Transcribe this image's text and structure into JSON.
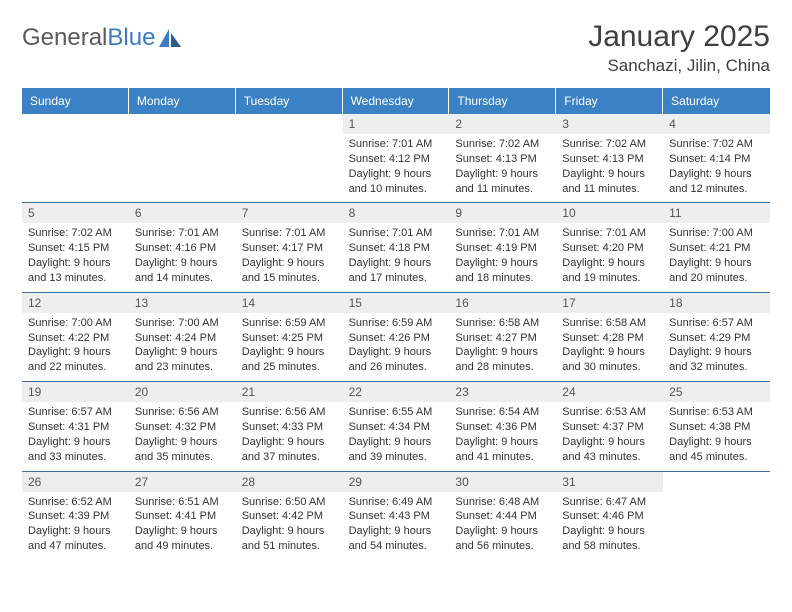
{
  "logo": {
    "part1": "General",
    "part2": "Blue"
  },
  "title": "January 2025",
  "location": "Sanchazi, Jilin, China",
  "colors": {
    "header_bg": "#3b82c4",
    "header_text": "#ffffff",
    "daynum_bg": "#eceef0",
    "border": "#3b6fa0",
    "logo_gray": "#5a5a5a",
    "logo_blue": "#3b7bbf"
  },
  "dayNames": [
    "Sunday",
    "Monday",
    "Tuesday",
    "Wednesday",
    "Thursday",
    "Friday",
    "Saturday"
  ],
  "weeks": [
    [
      {
        "n": "",
        "sr": "",
        "ss": "",
        "dl": ""
      },
      {
        "n": "",
        "sr": "",
        "ss": "",
        "dl": ""
      },
      {
        "n": "",
        "sr": "",
        "ss": "",
        "dl": ""
      },
      {
        "n": "1",
        "sr": "Sunrise: 7:01 AM",
        "ss": "Sunset: 4:12 PM",
        "dl": "Daylight: 9 hours and 10 minutes."
      },
      {
        "n": "2",
        "sr": "Sunrise: 7:02 AM",
        "ss": "Sunset: 4:13 PM",
        "dl": "Daylight: 9 hours and 11 minutes."
      },
      {
        "n": "3",
        "sr": "Sunrise: 7:02 AM",
        "ss": "Sunset: 4:13 PM",
        "dl": "Daylight: 9 hours and 11 minutes."
      },
      {
        "n": "4",
        "sr": "Sunrise: 7:02 AM",
        "ss": "Sunset: 4:14 PM",
        "dl": "Daylight: 9 hours and 12 minutes."
      }
    ],
    [
      {
        "n": "5",
        "sr": "Sunrise: 7:02 AM",
        "ss": "Sunset: 4:15 PM",
        "dl": "Daylight: 9 hours and 13 minutes."
      },
      {
        "n": "6",
        "sr": "Sunrise: 7:01 AM",
        "ss": "Sunset: 4:16 PM",
        "dl": "Daylight: 9 hours and 14 minutes."
      },
      {
        "n": "7",
        "sr": "Sunrise: 7:01 AM",
        "ss": "Sunset: 4:17 PM",
        "dl": "Daylight: 9 hours and 15 minutes."
      },
      {
        "n": "8",
        "sr": "Sunrise: 7:01 AM",
        "ss": "Sunset: 4:18 PM",
        "dl": "Daylight: 9 hours and 17 minutes."
      },
      {
        "n": "9",
        "sr": "Sunrise: 7:01 AM",
        "ss": "Sunset: 4:19 PM",
        "dl": "Daylight: 9 hours and 18 minutes."
      },
      {
        "n": "10",
        "sr": "Sunrise: 7:01 AM",
        "ss": "Sunset: 4:20 PM",
        "dl": "Daylight: 9 hours and 19 minutes."
      },
      {
        "n": "11",
        "sr": "Sunrise: 7:00 AM",
        "ss": "Sunset: 4:21 PM",
        "dl": "Daylight: 9 hours and 20 minutes."
      }
    ],
    [
      {
        "n": "12",
        "sr": "Sunrise: 7:00 AM",
        "ss": "Sunset: 4:22 PM",
        "dl": "Daylight: 9 hours and 22 minutes."
      },
      {
        "n": "13",
        "sr": "Sunrise: 7:00 AM",
        "ss": "Sunset: 4:24 PM",
        "dl": "Daylight: 9 hours and 23 minutes."
      },
      {
        "n": "14",
        "sr": "Sunrise: 6:59 AM",
        "ss": "Sunset: 4:25 PM",
        "dl": "Daylight: 9 hours and 25 minutes."
      },
      {
        "n": "15",
        "sr": "Sunrise: 6:59 AM",
        "ss": "Sunset: 4:26 PM",
        "dl": "Daylight: 9 hours and 26 minutes."
      },
      {
        "n": "16",
        "sr": "Sunrise: 6:58 AM",
        "ss": "Sunset: 4:27 PM",
        "dl": "Daylight: 9 hours and 28 minutes."
      },
      {
        "n": "17",
        "sr": "Sunrise: 6:58 AM",
        "ss": "Sunset: 4:28 PM",
        "dl": "Daylight: 9 hours and 30 minutes."
      },
      {
        "n": "18",
        "sr": "Sunrise: 6:57 AM",
        "ss": "Sunset: 4:29 PM",
        "dl": "Daylight: 9 hours and 32 minutes."
      }
    ],
    [
      {
        "n": "19",
        "sr": "Sunrise: 6:57 AM",
        "ss": "Sunset: 4:31 PM",
        "dl": "Daylight: 9 hours and 33 minutes."
      },
      {
        "n": "20",
        "sr": "Sunrise: 6:56 AM",
        "ss": "Sunset: 4:32 PM",
        "dl": "Daylight: 9 hours and 35 minutes."
      },
      {
        "n": "21",
        "sr": "Sunrise: 6:56 AM",
        "ss": "Sunset: 4:33 PM",
        "dl": "Daylight: 9 hours and 37 minutes."
      },
      {
        "n": "22",
        "sr": "Sunrise: 6:55 AM",
        "ss": "Sunset: 4:34 PM",
        "dl": "Daylight: 9 hours and 39 minutes."
      },
      {
        "n": "23",
        "sr": "Sunrise: 6:54 AM",
        "ss": "Sunset: 4:36 PM",
        "dl": "Daylight: 9 hours and 41 minutes."
      },
      {
        "n": "24",
        "sr": "Sunrise: 6:53 AM",
        "ss": "Sunset: 4:37 PM",
        "dl": "Daylight: 9 hours and 43 minutes."
      },
      {
        "n": "25",
        "sr": "Sunrise: 6:53 AM",
        "ss": "Sunset: 4:38 PM",
        "dl": "Daylight: 9 hours and 45 minutes."
      }
    ],
    [
      {
        "n": "26",
        "sr": "Sunrise: 6:52 AM",
        "ss": "Sunset: 4:39 PM",
        "dl": "Daylight: 9 hours and 47 minutes."
      },
      {
        "n": "27",
        "sr": "Sunrise: 6:51 AM",
        "ss": "Sunset: 4:41 PM",
        "dl": "Daylight: 9 hours and 49 minutes."
      },
      {
        "n": "28",
        "sr": "Sunrise: 6:50 AM",
        "ss": "Sunset: 4:42 PM",
        "dl": "Daylight: 9 hours and 51 minutes."
      },
      {
        "n": "29",
        "sr": "Sunrise: 6:49 AM",
        "ss": "Sunset: 4:43 PM",
        "dl": "Daylight: 9 hours and 54 minutes."
      },
      {
        "n": "30",
        "sr": "Sunrise: 6:48 AM",
        "ss": "Sunset: 4:44 PM",
        "dl": "Daylight: 9 hours and 56 minutes."
      },
      {
        "n": "31",
        "sr": "Sunrise: 6:47 AM",
        "ss": "Sunset: 4:46 PM",
        "dl": "Daylight: 9 hours and 58 minutes."
      },
      {
        "n": "",
        "sr": "",
        "ss": "",
        "dl": ""
      }
    ]
  ]
}
